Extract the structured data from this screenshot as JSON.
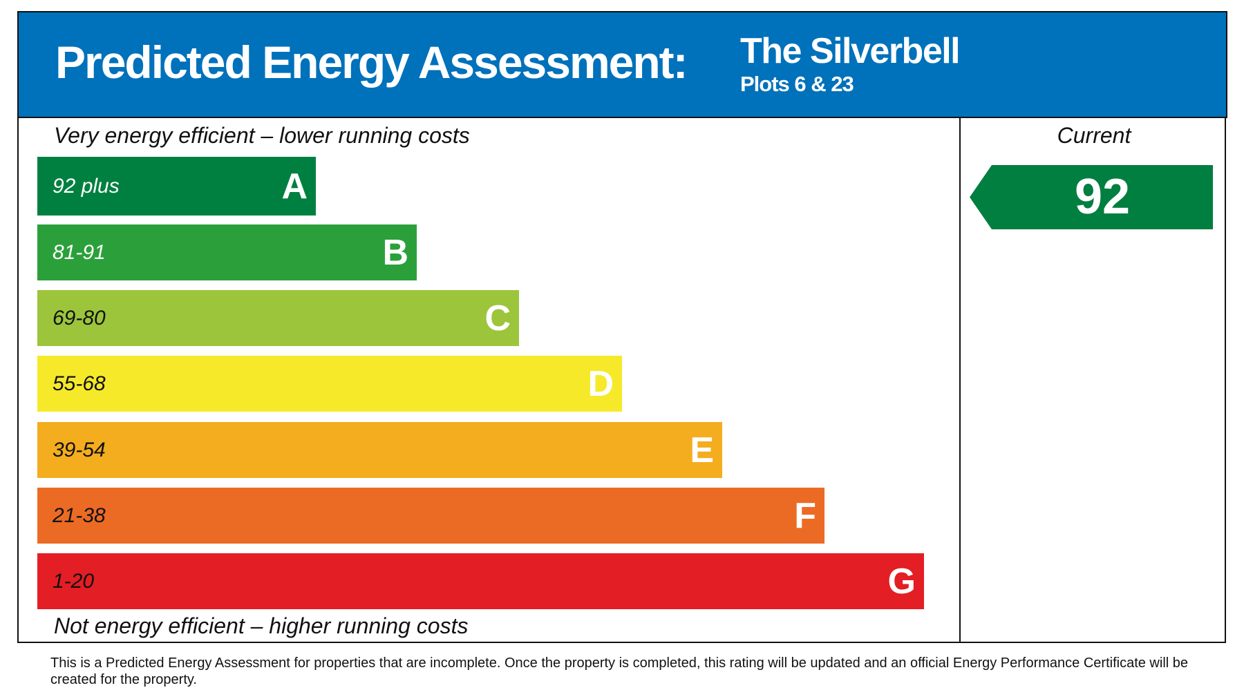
{
  "header": {
    "title": "Predicted Energy Assessment:",
    "property_name": "The Silverbell",
    "plots": "Plots 6 & 23",
    "background": "#0071bb"
  },
  "scale": {
    "top_caption": "Very energy efficient – lower running costs",
    "bottom_caption": "Not energy efficient – higher running costs",
    "bands": [
      {
        "range": "92 plus",
        "letter": "A",
        "color": "#008040",
        "text_color": "#ffffff"
      },
      {
        "range": "81-91",
        "letter": "B",
        "color": "#2ba03a",
        "text_color": "#ffffff"
      },
      {
        "range": "69-80",
        "letter": "C",
        "color": "#9cc53c",
        "text_color": "#111111"
      },
      {
        "range": "55-68",
        "letter": "D",
        "color": "#f6e92a",
        "text_color": "#111111"
      },
      {
        "range": "39-54",
        "letter": "E",
        "color": "#f4ad1f",
        "text_color": "#111111"
      },
      {
        "range": "21-38",
        "letter": "F",
        "color": "#ec6b24",
        "text_color": "#111111"
      },
      {
        "range": "1-20",
        "letter": "G",
        "color": "#e31e24",
        "text_color": "#111111"
      }
    ]
  },
  "current": {
    "label": "Current",
    "value": "92",
    "band": "A",
    "color": "#007f40"
  },
  "footnote": "This is a Predicted Energy Assessment for properties that are incomplete. Once the property is completed, this rating will be updated and an official Energy Performance Certificate will be created for the property."
}
